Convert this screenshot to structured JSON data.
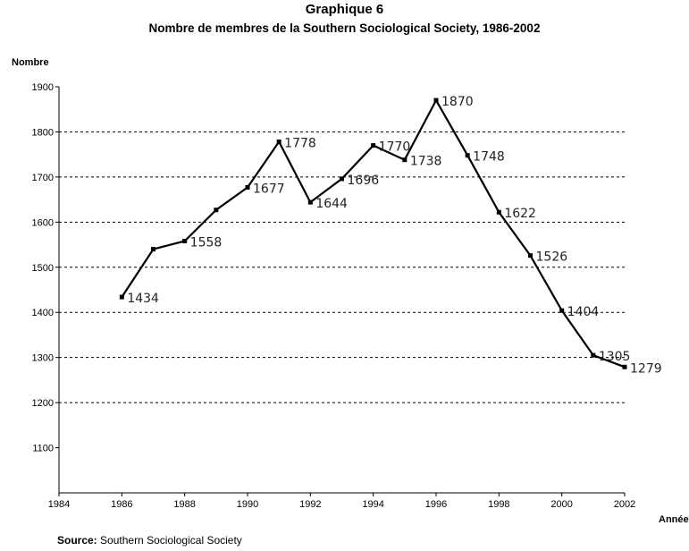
{
  "chart_data": {
    "type": "line",
    "title": "Graphique 6",
    "subtitle": "Nombre de membres de la Southern Sociological Society, 1986-2002",
    "ylabel": "Nombre",
    "xlabel": "Année",
    "xlim": [
      1984,
      2002
    ],
    "ylim": [
      1100,
      1900
    ],
    "x_ticks": [
      "1984",
      "1986",
      "1988",
      "1990",
      "1992",
      "1994",
      "1996",
      "1998",
      "2000",
      "2002"
    ],
    "y_ticks": [
      "1100",
      "1200",
      "1300",
      "1400",
      "1500",
      "1600",
      "1700",
      "1800",
      "1900"
    ],
    "grid": "horizontal dashed",
    "series": [
      {
        "x": [
          1986,
          1987,
          1988,
          1989,
          1990,
          1991,
          1992,
          1993,
          1994,
          1995,
          1996,
          1997,
          1998,
          1999,
          2000,
          2001,
          2002
        ],
        "values": [
          1434,
          1540,
          1558,
          1627,
          1677,
          1778,
          1644,
          1696,
          1770,
          1738,
          1870,
          1748,
          1622,
          1526,
          1404,
          1305,
          1279
        ],
        "labels": [
          "1434",
          null,
          "1558",
          null,
          "1677",
          "1778",
          "1644",
          "1696",
          "1770",
          "1738",
          "1870",
          "1748",
          "1622",
          "1526",
          "1404",
          "1305",
          "1279"
        ]
      }
    ],
    "color": "#000000"
  },
  "source": {
    "label": "Source:",
    "text": "Southern Sociological Society"
  }
}
